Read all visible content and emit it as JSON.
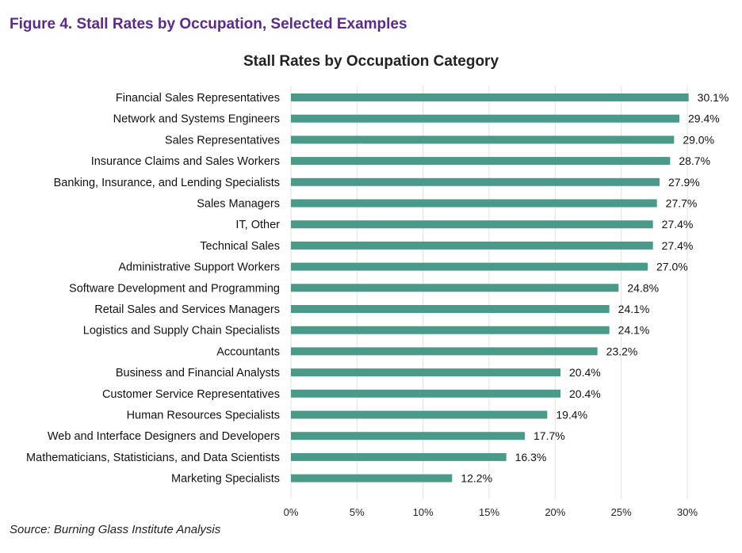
{
  "figure_title": "Figure 4. Stall Rates by Occupation, Selected Examples",
  "source": "Source: Burning Glass Institute Analysis",
  "colors": {
    "bar": "#4a9a89",
    "figure_title": "#5b2a8c",
    "grid": "#e2e2e2"
  },
  "chart_data": {
    "type": "bar",
    "orientation": "horizontal",
    "title": "Stall Rates by Occupation Category",
    "xlabel": "",
    "ylabel": "",
    "xlim": [
      0,
      30
    ],
    "x_ticks": [
      "0%",
      "5%",
      "10%",
      "15%",
      "20%",
      "25%",
      "30%"
    ],
    "grid": true,
    "categories": [
      "Financial Sales Representatives",
      "Network and Systems Engineers",
      "Sales Representatives",
      "Insurance Claims and Sales Workers",
      "Banking, Insurance, and Lending Specialists",
      "Sales Managers",
      "IT, Other",
      "Technical Sales",
      "Administrative Support Workers",
      "Software Development and Programming",
      "Retail Sales and Services Managers",
      "Logistics and Supply Chain Specialists",
      "Accountants",
      "Business and Financial Analysts",
      "Customer Service Representatives",
      "Human Resources Specialists",
      "Web and Interface Designers and Developers",
      "Mathematicians, Statisticians, and Data Scientists",
      "Marketing Specialists"
    ],
    "values": [
      30.1,
      29.4,
      29.0,
      28.7,
      27.9,
      27.7,
      27.4,
      27.4,
      27.0,
      24.8,
      24.1,
      24.1,
      23.2,
      20.4,
      20.4,
      19.4,
      17.7,
      16.3,
      12.2
    ],
    "value_labels": [
      "30.1%",
      "29.4%",
      "29.0%",
      "28.7%",
      "27.9%",
      "27.7%",
      "27.4%",
      "27.4%",
      "27.0%",
      "24.8%",
      "24.1%",
      "24.1%",
      "23.2%",
      "20.4%",
      "20.4%",
      "19.4%",
      "17.7%",
      "16.3%",
      "12.2%"
    ]
  }
}
